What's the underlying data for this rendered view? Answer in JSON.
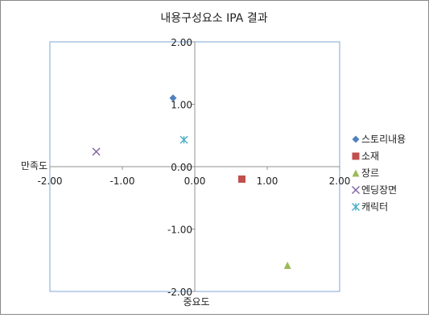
{
  "chart_data": {
    "type": "scatter",
    "title": "내용구성요소 IPA 결과",
    "xlabel": "만족도",
    "ylabel": "중요도",
    "xlim": [
      -2,
      2
    ],
    "ylim": [
      -2,
      2
    ],
    "x_ticks": [
      "-2.00",
      "-1.00",
      "0.00",
      "1.00",
      "2.00"
    ],
    "y_ticks": [
      "2.00",
      "1.00",
      "0.00",
      "-1.00",
      "-2.00"
    ],
    "grid": false,
    "legend_position": "right",
    "series": [
      {
        "name": "스토리내용",
        "marker": "diamond",
        "color": "#4F81BD",
        "x": -0.3,
        "y": 1.1
      },
      {
        "name": "소재",
        "marker": "square",
        "color": "#C0504D",
        "x": 0.65,
        "y": -0.2
      },
      {
        "name": "장르",
        "marker": "triangle",
        "color": "#9BBB59",
        "x": 1.28,
        "y": -1.58
      },
      {
        "name": "엔딩장면",
        "marker": "x",
        "color": "#8064A2",
        "x": -1.36,
        "y": 0.24
      },
      {
        "name": "캐릭터",
        "marker": "asterisk",
        "color": "#4BACC6",
        "x": -0.15,
        "y": 0.43
      }
    ]
  }
}
